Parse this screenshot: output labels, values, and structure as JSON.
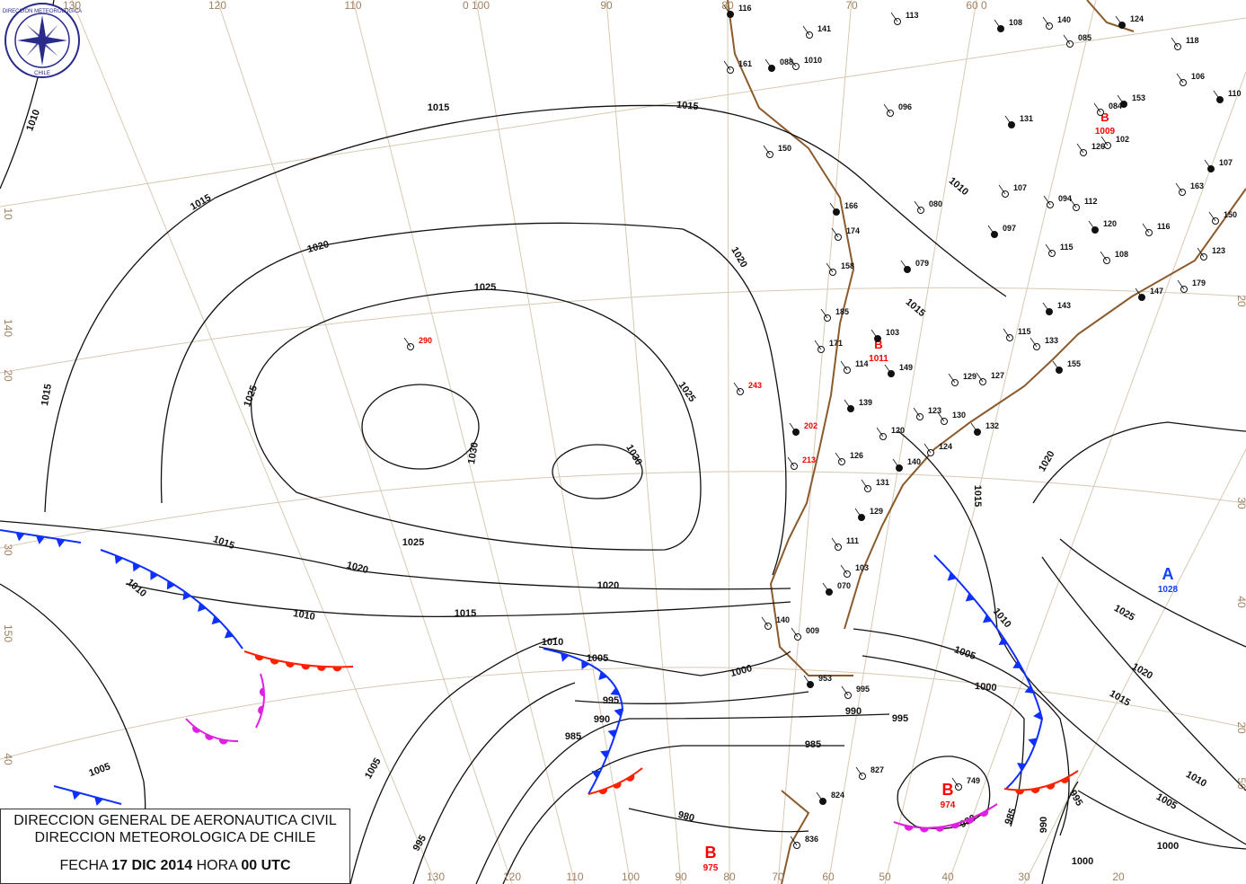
{
  "title_box": {
    "line1": "DIRECCION GENERAL DE AERONAUTICA CIVIL",
    "line2": "DIRECCION METEOROLOGICA DE CHILE",
    "fecha_label": "FECHA",
    "date": "17 DIC 2014",
    "hora_label": "HORA",
    "time": "00 UTC"
  },
  "logo": {
    "text_top": "DIRECCION METEOROLOGICA",
    "text_bottom": "CHILE"
  },
  "colors": {
    "isobar": "#111111",
    "coast": "#8b5a2b",
    "cold_front": "#1030ff",
    "warm_front": "#ff2000",
    "occluded_front": "#e020e0",
    "high": "#1040ff",
    "low": "#ff0000",
    "graticule": "#d8c8b4"
  },
  "graticule_labels": {
    "top": [
      "130",
      "120",
      "110",
      "0 100",
      "90",
      "80",
      "70",
      "60 0"
    ],
    "bottom": [
      "130",
      "120",
      "110",
      "100",
      "90",
      "80",
      "70",
      "60",
      "50",
      "40",
      "30",
      "20"
    ],
    "left": [
      "10",
      "140",
      "20",
      "30",
      "150",
      "40"
    ],
    "right": [
      "20",
      "30",
      "40",
      "20",
      "50"
    ]
  },
  "isobar_labels": [
    "1010",
    "1015",
    "1015",
    "1015",
    "1020",
    "1025",
    "1025",
    "1030",
    "1030",
    "1015",
    "1020",
    "1025",
    "1025",
    "1015",
    "1020",
    "1010",
    "1010",
    "1020",
    "1015",
    "1010",
    "1005",
    "1000",
    "995",
    "990",
    "985",
    "980",
    "1005",
    "1005",
    "995",
    "1005",
    "1000",
    "995",
    "990",
    "985",
    "980",
    "985",
    "990",
    "995",
    "1000",
    "1010",
    "1015",
    "1020",
    "1025",
    "1020",
    "1015",
    "1010",
    "1005",
    "1000",
    "1015",
    "1010"
  ],
  "pressure_centers": [
    {
      "type": "A",
      "value": "1028"
    },
    {
      "type": "B",
      "value": "975"
    },
    {
      "type": "B",
      "value": "974"
    },
    {
      "type": "B",
      "value": "1009"
    },
    {
      "type": "B",
      "value": "1011"
    }
  ],
  "stations": [
    "116",
    "141",
    "161",
    "088",
    "1010",
    "113",
    "108",
    "140",
    "085",
    "124",
    "118",
    "096",
    "131",
    "150",
    "080",
    "166",
    "174",
    "158",
    "079",
    "185",
    "171",
    "103",
    "290",
    "243",
    "202",
    "213",
    "114",
    "149",
    "129",
    "127",
    "139",
    "123",
    "130",
    "132",
    "120",
    "126",
    "140",
    "124",
    "131",
    "129",
    "111",
    "103",
    "070",
    "140",
    "009",
    "953",
    "995",
    "827",
    "824",
    "836",
    "749",
    "097",
    "107",
    "115",
    "143",
    "115",
    "133",
    "155",
    "094",
    "112",
    "120",
    "116",
    "108",
    "147",
    "123",
    "179",
    "153",
    "084",
    "106",
    "110",
    "126",
    "102",
    "107",
    "163",
    "150"
  ]
}
